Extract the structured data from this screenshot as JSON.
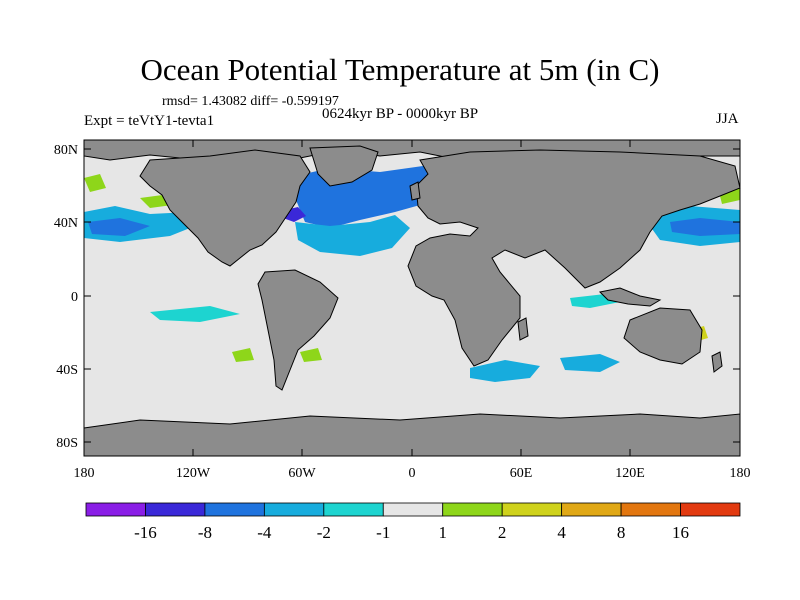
{
  "plot": {
    "title": "Ocean Potential Temperature at 5m (in C)",
    "stats": "rmsd= 1.43082  diff= -0.599197",
    "period": "0624kyr BP - 0000kyr BP",
    "experiment": "Expt = teVtY1-tevta1",
    "season": "JJA"
  },
  "axes": {
    "lat_ticks": [
      "80N",
      "40N",
      "0",
      "40S",
      "80S"
    ],
    "lon_ticks": [
      "180",
      "120W",
      "60W",
      "0",
      "60E",
      "120E",
      "180"
    ]
  },
  "colorbar": {
    "colors": [
      "#8a1ee6",
      "#3a28d8",
      "#1f73de",
      "#17acdd",
      "#1dd4d0",
      "#e6e6e6",
      "#8ed61a",
      "#cfd21c",
      "#e0a816",
      "#e2760f",
      "#e23a10"
    ],
    "labels": [
      "-16",
      "-8",
      "-4",
      "-2",
      "-1",
      "1",
      "2",
      "4",
      "8",
      "16"
    ]
  },
  "legend": {
    "land": "#8c8c8c",
    "ocean_neutral": "#e6e6e6",
    "coast": "#000000"
  }
}
